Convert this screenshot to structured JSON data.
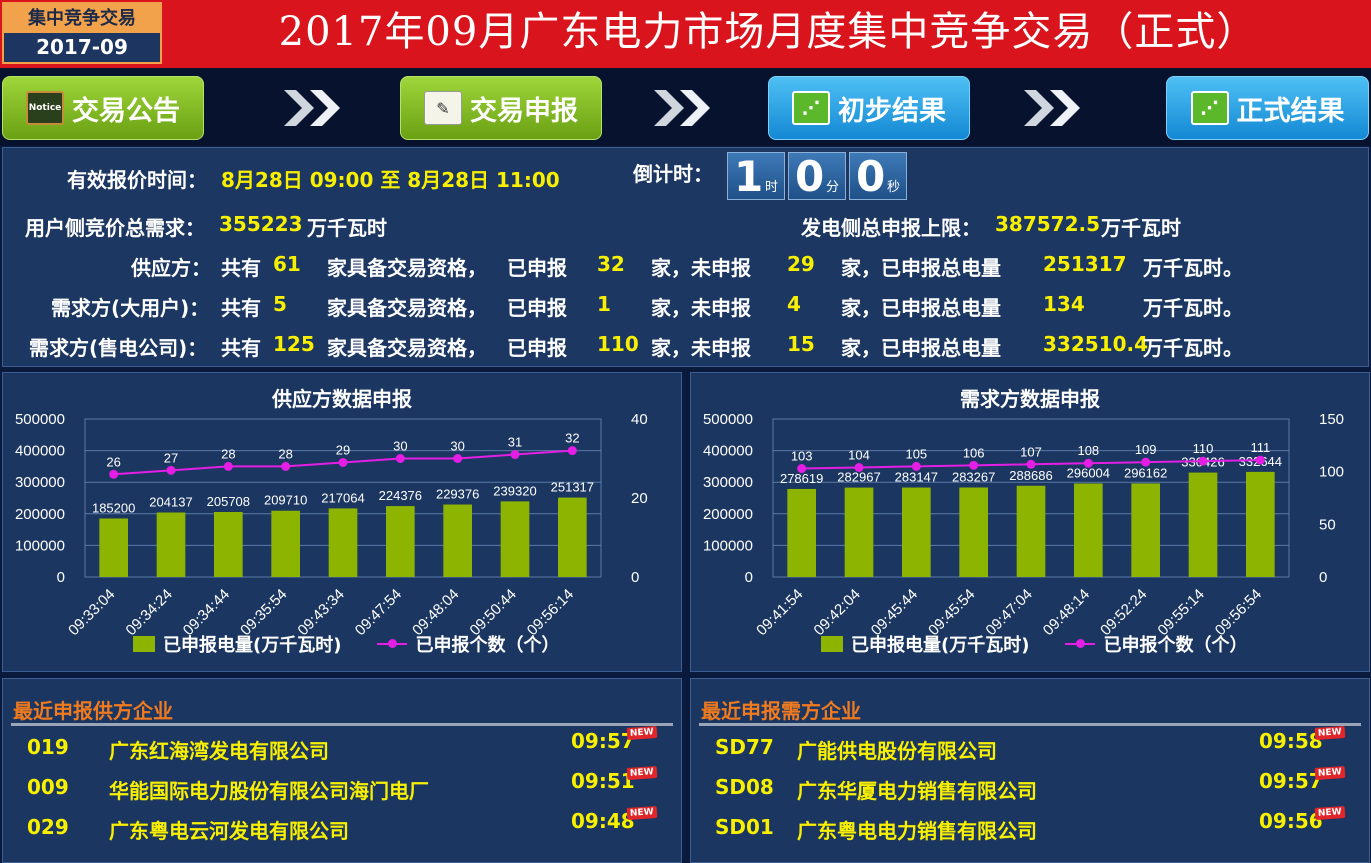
{
  "header": {
    "badge_title": "集中竞争交易",
    "badge_period": "2017-09",
    "title": "2017年09月广东电力市场月度集中竞争交易（正式）"
  },
  "steps": [
    {
      "label": "交易公告",
      "icon": "notice-board-icon",
      "icon_text": "Notice"
    },
    {
      "label": "交易申报",
      "icon": "form-icon"
    },
    {
      "label": "初步结果",
      "icon": "share-icon"
    },
    {
      "label": "正式结果",
      "icon": "share-icon"
    }
  ],
  "info": {
    "quote_time_label": "有效报价时间：",
    "quote_time_value": "8月28日 09:00 至 8月28日 11:00",
    "countdown_label": "倒计时：",
    "countdown": [
      {
        "value": "1",
        "unit": "时"
      },
      {
        "value": "0",
        "unit": "分"
      },
      {
        "value": "0",
        "unit": "秒"
      }
    ],
    "user_demand_label": "用户侧竞价总需求：",
    "user_demand_value": "355223",
    "user_demand_unit": "万千瓦时",
    "gen_cap_label": "发电侧总申报上限：",
    "gen_cap_value": "387572.5",
    "gen_cap_unit": "万千瓦时",
    "rows": [
      {
        "label": "供应方：",
        "total": "61",
        "reported": "32",
        "unreported": "29",
        "amount": "251317"
      },
      {
        "label": "需求方(大用户)：",
        "total": "5",
        "reported": "1",
        "unreported": "4",
        "amount": "134"
      },
      {
        "label": "需求方(售电公司)：",
        "total": "125",
        "reported": "110",
        "unreported": "15",
        "amount": "332510.4"
      }
    ],
    "text_total": "共有",
    "text_qualified": "家具备交易资格，",
    "text_reported": "已申报",
    "text_unreported": "家，未申报",
    "text_amount": "家，已申报总电量",
    "text_unit": "万千瓦时。"
  },
  "chart_data": [
    {
      "type": "bar",
      "title": "供应方数据申报",
      "categories": [
        "09:33:04",
        "09:34:24",
        "09:34:44",
        "09:35:54",
        "09:43:34",
        "09:47:54",
        "09:48:04",
        "09:50:44",
        "09:56:14"
      ],
      "series": [
        {
          "name": "已申报电量(万千瓦时)",
          "type": "bar",
          "axis": "left",
          "values": [
            185200,
            204137,
            205708,
            209710,
            217064,
            224376,
            229376,
            239320,
            251317
          ]
        },
        {
          "name": "已申报个数（个）",
          "type": "line",
          "axis": "right",
          "values": [
            26,
            27,
            28,
            28,
            29,
            30,
            30,
            31,
            32
          ]
        }
      ],
      "ylim": [
        0,
        500000
      ],
      "y2lim": [
        0,
        40
      ],
      "yticks": [
        "500000",
        "400000",
        "300000",
        "200000",
        "100000",
        "0"
      ],
      "y2ticks": [
        "40",
        "20",
        "0"
      ],
      "colors": {
        "bar": "#8cb400",
        "line": "#e41ee4"
      }
    },
    {
      "type": "bar",
      "title": "需求方数据申报",
      "categories": [
        "09:41:54",
        "09:42:04",
        "09:45:44",
        "09:45:54",
        "09:47:04",
        "09:48:14",
        "09:52:24",
        "09:55:14",
        "09:56:54"
      ],
      "series": [
        {
          "name": "已申报电量(万千瓦时)",
          "type": "bar",
          "axis": "left",
          "values": [
            278619,
            282967,
            283147,
            283267,
            288686,
            296004,
            296162,
            330426,
            332644
          ]
        },
        {
          "name": "已申报个数（个）",
          "type": "line",
          "axis": "right",
          "values": [
            103,
            104,
            105,
            106,
            107,
            108,
            109,
            110,
            111
          ]
        }
      ],
      "ylim": [
        0,
        500000
      ],
      "y2lim": [
        0,
        150
      ],
      "yticks": [
        "500000",
        "400000",
        "300000",
        "200000",
        "100000",
        "0"
      ],
      "y2ticks": [
        "150",
        "100",
        "50",
        "0"
      ],
      "colors": {
        "bar": "#8cb400",
        "line": "#e41ee4"
      }
    }
  ],
  "recent_supply": {
    "title": "最近申报供方企业",
    "new_tag": "NEW",
    "items": [
      {
        "code": "019",
        "name": "广东红海湾发电有限公司",
        "time": "09:57"
      },
      {
        "code": "009",
        "name": "华能国际电力股份有限公司海门电厂",
        "time": "09:51"
      },
      {
        "code": "029",
        "name": "广东粤电云河发电有限公司",
        "time": "09:48"
      }
    ]
  },
  "recent_demand": {
    "title": "最近申报需方企业",
    "new_tag": "NEW",
    "items": [
      {
        "code": "SD77",
        "name": "广能供电股份有限公司",
        "time": "09:58"
      },
      {
        "code": "SD08",
        "name": "广东华厦电力销售有限公司",
        "time": "09:57"
      },
      {
        "code": "SD01",
        "name": "广东粤电电力销售有限公司",
        "time": "09:56"
      }
    ]
  }
}
